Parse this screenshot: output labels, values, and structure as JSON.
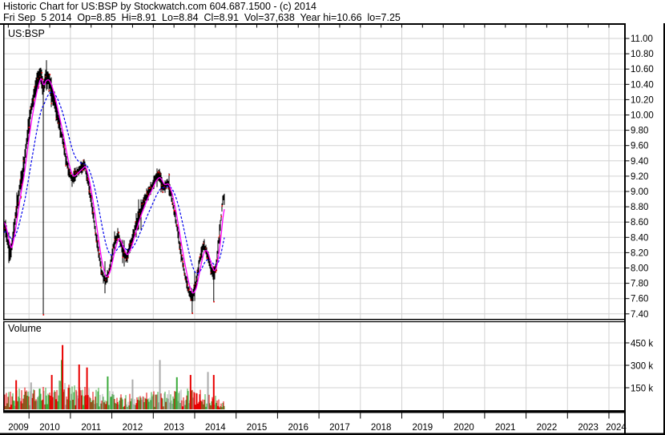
{
  "header": {
    "line1": "Historic Chart for US:BSP by Stockwatch.com 604.687.1500 - (c) 2014",
    "line2": "Fri Sep  5 2014  Op=8.85  Hi=8.91  Lo=8.84  Cl=8.91  Vol=37,638  Year hi=10.66  lo=7.25"
  },
  "quote": {
    "symbol": "US:BSP",
    "date": "Fri Sep 5 2014",
    "open": "8.85",
    "high": "8.91",
    "low": "8.84",
    "close": "8.91",
    "volume": "37,638",
    "year_high": "10.66",
    "year_low": "7.25"
  },
  "price_panel": {
    "label": "US:BSP"
  },
  "volume_panel": {
    "label": "Volume"
  },
  "colors": {
    "bar": "#000000",
    "tick_dot": "#f00000",
    "ma_fast": "#ff00ff",
    "ma_slow": "#0000ee",
    "vol_up": "#3aaa3a",
    "vol_down": "#e80000",
    "vol_neutral": "#ababab",
    "grid": "#d2d2d2",
    "frame": "#000000",
    "text": "#000000",
    "bg": "#ffffff"
  },
  "chart_data": {
    "type": "candlestick",
    "title": "Historic Chart for US:BSP",
    "x_axis": {
      "year_labels": [
        "2009",
        "2010",
        "2011",
        "2012",
        "2013",
        "2014",
        "2015",
        "2016",
        "2017",
        "2018",
        "2019",
        "2020",
        "2021",
        "2022",
        "2023",
        "2024"
      ],
      "visible_range": [
        2009.4,
        2024.46
      ],
      "data_end": 2014.68
    },
    "price_axis": {
      "tick_labels": [
        "11.00",
        "10.80",
        "10.60",
        "10.40",
        "10.20",
        "10.00",
        "9.80",
        "9.60",
        "9.40",
        "9.20",
        "9.00",
        "8.80",
        "8.60",
        "8.40",
        "8.20",
        "8.00",
        "7.80",
        "7.60",
        "7.40"
      ],
      "tick_values": [
        11.0,
        10.8,
        10.6,
        10.4,
        10.2,
        10.0,
        9.8,
        9.6,
        9.4,
        9.2,
        9.0,
        8.8,
        8.6,
        8.4,
        8.2,
        8.0,
        7.8,
        7.6,
        7.4
      ]
    },
    "volume_axis": {
      "tick_labels": [
        "450 k",
        "300 k",
        "150 k"
      ],
      "tick_values_k": [
        450,
        300,
        150
      ]
    },
    "price_path_monthly": [
      [
        2009.4,
        8.6
      ],
      [
        2009.48,
        8.35
      ],
      [
        2009.56,
        8.15
      ],
      [
        2009.63,
        8.5
      ],
      [
        2009.71,
        8.8
      ],
      [
        2009.79,
        9.1
      ],
      [
        2009.87,
        9.3
      ],
      [
        2009.95,
        9.7
      ],
      [
        2010.03,
        10.0
      ],
      [
        2010.12,
        10.25
      ],
      [
        2010.2,
        10.45
      ],
      [
        2010.28,
        10.55
      ],
      [
        2010.34,
        10.3
      ],
      [
        2010.4,
        10.5
      ],
      [
        2010.48,
        10.45
      ],
      [
        2010.56,
        10.3
      ],
      [
        2010.64,
        10.1
      ],
      [
        2010.72,
        9.9
      ],
      [
        2010.8,
        9.7
      ],
      [
        2010.88,
        9.45
      ],
      [
        2010.96,
        9.25
      ],
      [
        2011.05,
        9.15
      ],
      [
        2011.15,
        9.25
      ],
      [
        2011.25,
        9.3
      ],
      [
        2011.35,
        9.35
      ],
      [
        2011.45,
        9.05
      ],
      [
        2011.55,
        8.7
      ],
      [
        2011.65,
        8.3
      ],
      [
        2011.75,
        7.95
      ],
      [
        2011.85,
        7.82
      ],
      [
        2011.95,
        8.0
      ],
      [
        2012.05,
        8.3
      ],
      [
        2012.15,
        8.45
      ],
      [
        2012.25,
        8.25
      ],
      [
        2012.35,
        8.12
      ],
      [
        2012.45,
        8.3
      ],
      [
        2012.55,
        8.5
      ],
      [
        2012.65,
        8.68
      ],
      [
        2012.75,
        8.82
      ],
      [
        2012.85,
        8.95
      ],
      [
        2012.95,
        9.05
      ],
      [
        2013.05,
        9.18
      ],
      [
        2013.15,
        9.2
      ],
      [
        2013.25,
        9.05
      ],
      [
        2013.35,
        9.12
      ],
      [
        2013.45,
        8.9
      ],
      [
        2013.55,
        8.6
      ],
      [
        2013.65,
        8.25
      ],
      [
        2013.75,
        7.95
      ],
      [
        2013.85,
        7.7
      ],
      [
        2013.94,
        7.62
      ],
      [
        2014.03,
        7.78
      ],
      [
        2014.12,
        8.1
      ],
      [
        2014.22,
        8.3
      ],
      [
        2014.3,
        8.2
      ],
      [
        2014.38,
        8.0
      ],
      [
        2014.46,
        7.9
      ],
      [
        2014.52,
        8.05
      ],
      [
        2014.58,
        8.35
      ],
      [
        2014.63,
        8.6
      ],
      [
        2014.66,
        8.8
      ],
      [
        2014.68,
        8.91
      ]
    ],
    "price_spikes": [
      {
        "t": 2010.345,
        "low": 7.38
      },
      {
        "t": 2013.94,
        "low": 7.4
      },
      {
        "t": 2014.46,
        "low": 7.55
      }
    ],
    "volume_base_k": [
      [
        2009.4,
        45
      ],
      [
        2009.8,
        60
      ],
      [
        2010.2,
        70
      ],
      [
        2010.6,
        85
      ],
      [
        2010.95,
        80
      ],
      [
        2011.3,
        70
      ],
      [
        2011.7,
        60
      ],
      [
        2012.1,
        50
      ],
      [
        2012.5,
        42
      ],
      [
        2012.9,
        50
      ],
      [
        2013.2,
        55
      ],
      [
        2013.6,
        58
      ],
      [
        2013.95,
        60
      ],
      [
        2014.15,
        55
      ],
      [
        2014.4,
        45
      ],
      [
        2014.6,
        35
      ],
      [
        2014.68,
        25
      ]
    ],
    "volume_spikes": [
      {
        "t": 2009.69,
        "k": 195,
        "color": "vol_down"
      },
      {
        "t": 2010.05,
        "k": 180,
        "color": "vol_neutral"
      },
      {
        "t": 2010.55,
        "k": 230,
        "color": "vol_down"
      },
      {
        "t": 2010.79,
        "k": 330,
        "color": "vol_up"
      },
      {
        "t": 2010.81,
        "k": 430,
        "color": "vol_down"
      },
      {
        "t": 2011.21,
        "k": 300,
        "color": "vol_down"
      },
      {
        "t": 2011.4,
        "k": 280,
        "color": "vol_down"
      },
      {
        "t": 2011.9,
        "k": 220,
        "color": "vol_up"
      },
      {
        "t": 2012.5,
        "k": 200,
        "color": "vol_neutral"
      },
      {
        "t": 2013.16,
        "k": 330,
        "color": "vol_neutral"
      },
      {
        "t": 2013.57,
        "k": 215,
        "color": "vol_up"
      },
      {
        "t": 2013.9,
        "k": 230,
        "color": "vol_down"
      },
      {
        "t": 2014.32,
        "k": 250,
        "color": "vol_neutral"
      },
      {
        "t": 2014.46,
        "k": 230,
        "color": "vol_down"
      }
    ],
    "moving_averages": [
      {
        "name": "fast",
        "style": "solid",
        "color_key": "ma_fast"
      },
      {
        "name": "slow",
        "style": "dashed",
        "color_key": "ma_slow"
      }
    ]
  }
}
